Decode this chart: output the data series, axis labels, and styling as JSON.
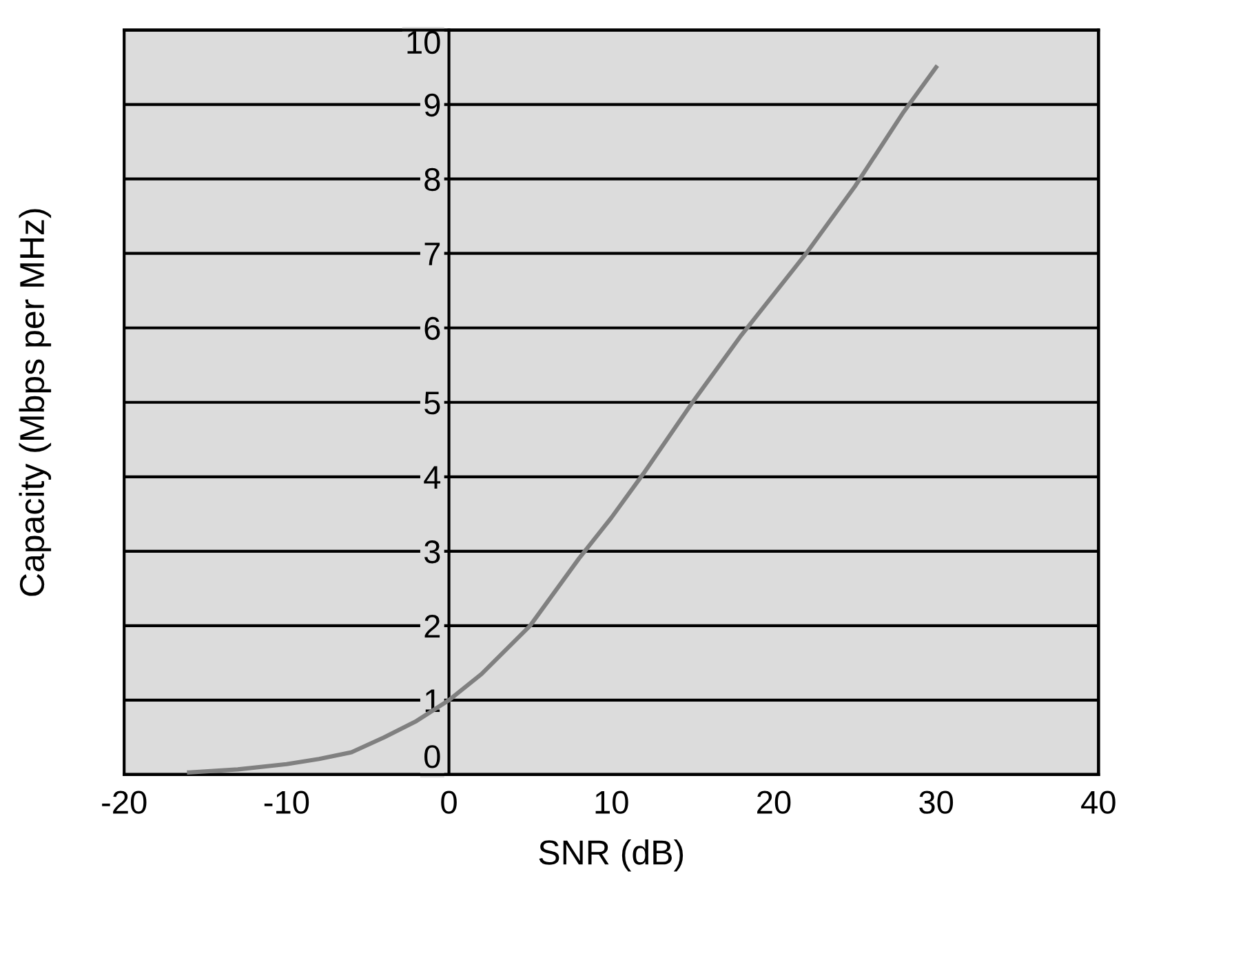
{
  "chart_data": {
    "type": "line",
    "xlabel": "SNR (dB)",
    "ylabel": "Capacity (Mbps per MHz)",
    "x": [
      -16,
      -13,
      -10,
      -8,
      -6,
      -4,
      -2,
      0,
      2,
      5,
      8,
      10,
      12,
      15,
      18,
      20,
      22,
      25,
      28,
      30
    ],
    "series": [
      {
        "color": "#808080",
        "values": [
          0.03,
          0.07,
          0.14,
          0.21,
          0.3,
          0.5,
          0.72,
          1.0,
          1.35,
          2.0,
          2.9,
          3.45,
          4.05,
          5.0,
          5.9,
          6.45,
          7.0,
          7.9,
          8.9,
          9.5
        ]
      }
    ],
    "xlim": [
      -20,
      40
    ],
    "ylim": [
      0,
      10
    ],
    "xticks": [
      -20,
      -10,
      0,
      10,
      20,
      30,
      40
    ],
    "yticks": [
      0,
      1,
      2,
      3,
      4,
      5,
      6,
      7,
      8,
      9,
      10
    ],
    "grid": "y",
    "marker": "none",
    "line_style": "solid"
  }
}
